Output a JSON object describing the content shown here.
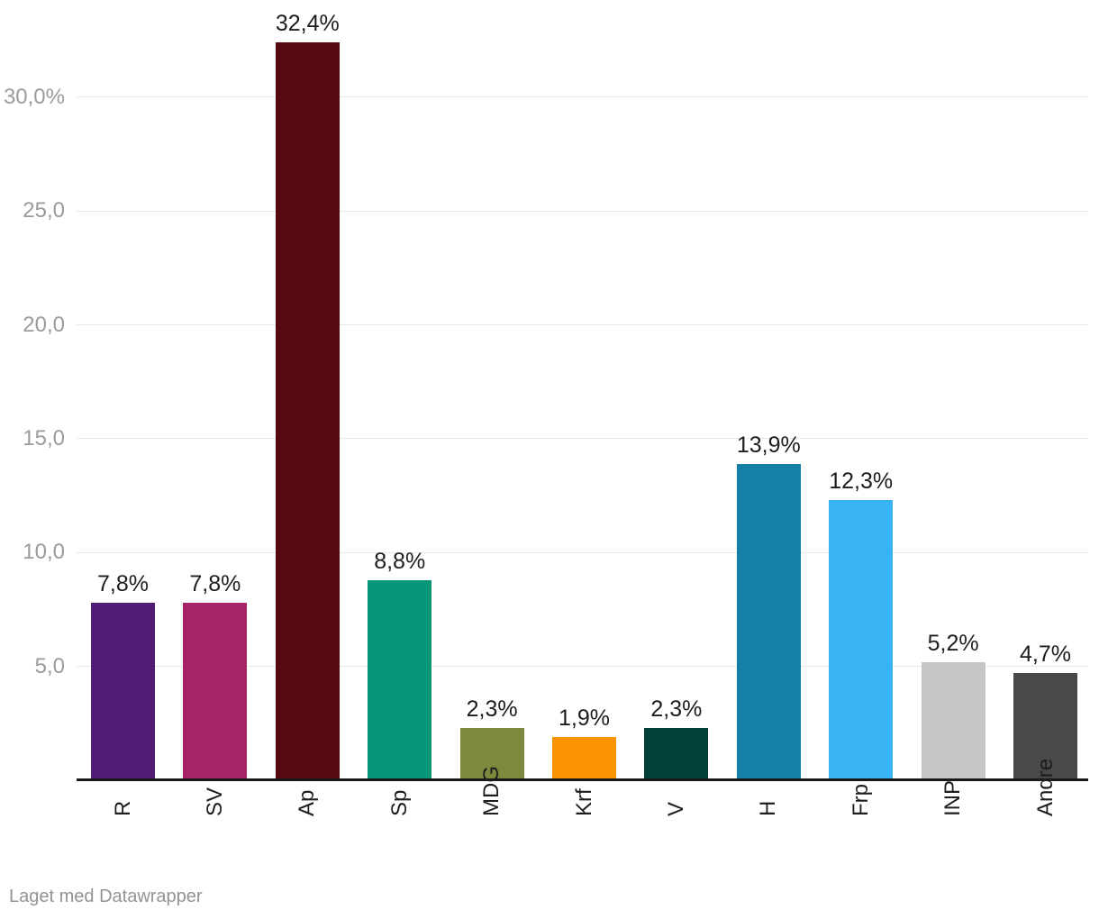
{
  "chart_data": {
    "type": "bar",
    "title": "",
    "categories": [
      "R",
      "SV",
      "Ap",
      "Sp",
      "MDG",
      "Krf",
      "V",
      "H",
      "Frp",
      "INP",
      "Andre"
    ],
    "values": [
      7.8,
      7.8,
      32.4,
      8.8,
      2.3,
      1.9,
      2.3,
      13.9,
      12.3,
      5.2,
      4.7
    ],
    "value_labels": [
      "7,8%",
      "7,8%",
      "32,4%",
      "8,8%",
      "2,3%",
      "1,9%",
      "2,3%",
      "13,9%",
      "12,3%",
      "5,2%",
      "4,7%"
    ],
    "bar_colors": [
      "#511b73",
      "#a62465",
      "#560a10",
      "#089678",
      "#7d8a3d",
      "#f99300",
      "#04403a",
      "#1380a6",
      "#38b4f4",
      "#c6c6c6",
      "#494949"
    ],
    "y_ticks": [
      {
        "value": 5,
        "label": "5,0"
      },
      {
        "value": 10,
        "label": "10,0"
      },
      {
        "value": 15,
        "label": "15,0"
      },
      {
        "value": 20,
        "label": "20,0"
      },
      {
        "value": 25,
        "label": "25,0"
      },
      {
        "value": 30,
        "label": "30,0%"
      }
    ],
    "ylim": [
      0,
      34.3
    ],
    "xlabel": "",
    "ylabel": "",
    "grid": true,
    "legend_position": "none",
    "x_label_rotation": -90
  },
  "footer": {
    "credit": "Laget med Datawrapper"
  },
  "colors": {
    "background": "#ffffff",
    "gridline": "#e7e7e7",
    "axis_line": "#181818",
    "tick_text": "#9b9b9b",
    "label_text": "#1d1d1d",
    "credit_text": "#939393"
  }
}
